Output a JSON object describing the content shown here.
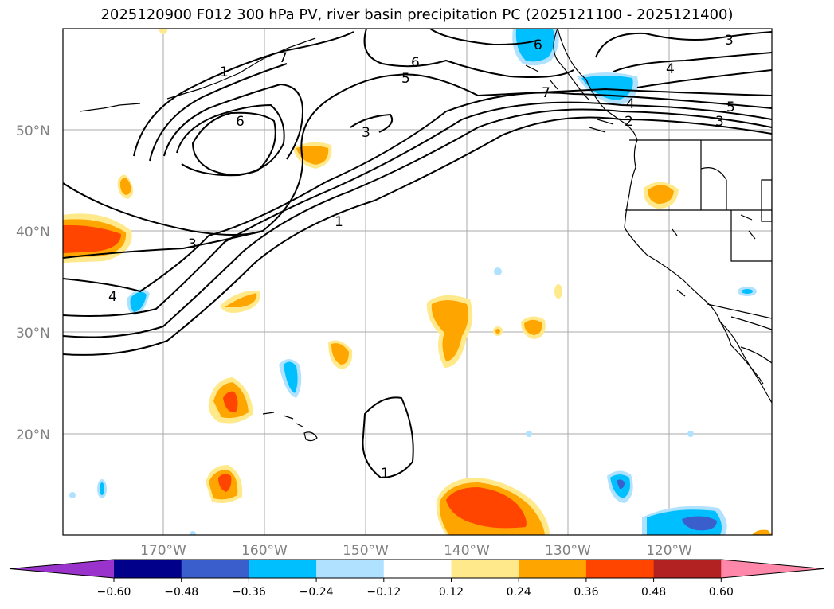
{
  "title": "2025120900 F012 300 hPa PV, river basin precipitation PC (2025121100 - 2025121400)",
  "lat_labels": [
    "50°N",
    "40°N",
    "30°N",
    "20°N"
  ],
  "lon_labels": [
    "170°W",
    "160°W",
    "150°W",
    "140°W",
    "130°W",
    "120°W"
  ],
  "colorbar": {
    "ticks": [
      "−0.60",
      "−0.48",
      "−0.36",
      "−0.24",
      "−0.12",
      "0.12",
      "0.24",
      "0.36",
      "0.48",
      "0.60"
    ],
    "colors": [
      "#9933cc",
      "#00008b",
      "#3a5fcd",
      "#00bfff",
      "#b0e2ff",
      "#ffffff",
      "#ffe98a",
      "#ffa500",
      "#ff4500",
      "#b22222",
      "#ff88aa"
    ]
  },
  "contour_labels": [
    "1",
    "1",
    "1",
    "2",
    "3",
    "3",
    "3",
    "3",
    "4",
    "4",
    "4",
    "5",
    "5",
    "6",
    "6",
    "6",
    "7",
    "7"
  ],
  "colors": {
    "grid": "#a9a9a9",
    "contour": "#000000",
    "coast": "#000000"
  }
}
